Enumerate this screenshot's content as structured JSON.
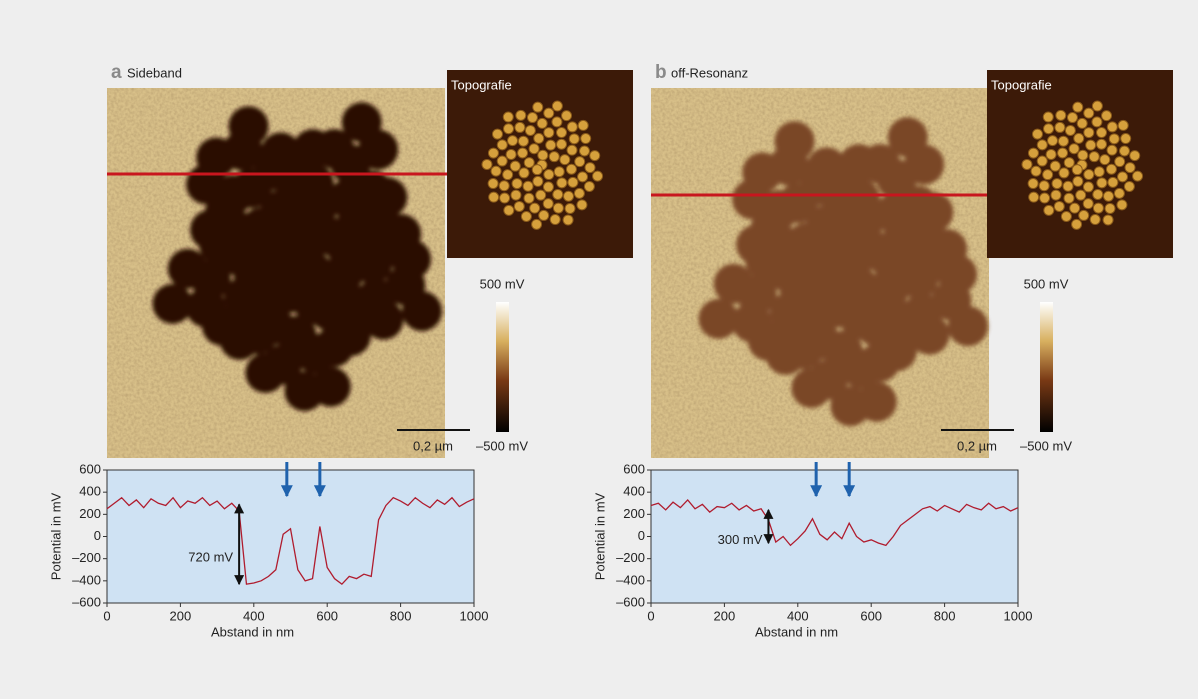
{
  "chart_data": [
    {
      "type": "line",
      "panel_letter": "a",
      "panel_title": "Sideband",
      "inset_label": "Topografie",
      "colorbar_labels": [
        "500 mV",
        "–500 mV"
      ],
      "scalebar_label": "0,2 µm",
      "xlabel": "Abstand in nm",
      "ylabel": "Potential in mV",
      "x": [
        0,
        20,
        40,
        60,
        80,
        100,
        120,
        140,
        160,
        180,
        200,
        220,
        240,
        260,
        280,
        300,
        320,
        340,
        360,
        380,
        400,
        420,
        440,
        460,
        480,
        500,
        520,
        540,
        560,
        580,
        600,
        620,
        640,
        660,
        680,
        700,
        720,
        740,
        760,
        780,
        800,
        820,
        840,
        860,
        880,
        900,
        920,
        940,
        960,
        980,
        1000
      ],
      "series": [
        {
          "color": "#b01c2e",
          "values": [
            250,
            300,
            350,
            280,
            330,
            260,
            340,
            300,
            280,
            350,
            260,
            320,
            300,
            350,
            280,
            320,
            250,
            300,
            230,
            -430,
            -420,
            -400,
            -360,
            -300,
            20,
            70,
            -300,
            -400,
            -380,
            90,
            -280,
            -380,
            -430,
            -360,
            -380,
            -340,
            -360,
            150,
            280,
            350,
            320,
            280,
            350,
            300,
            260,
            330,
            290,
            350,
            270,
            310,
            340
          ]
        }
      ],
      "xlim": [
        0,
        1000
      ],
      "xticks": [
        0,
        200,
        400,
        600,
        800,
        1000
      ],
      "ylim": [
        -600,
        600
      ],
      "yticks": [
        {
          "value": -600,
          "label": "–600"
        },
        {
          "value": -400,
          "label": "–400"
        },
        {
          "value": -200,
          "label": "–200"
        },
        0,
        200,
        400,
        600
      ],
      "annotations": [
        {
          "text": "720 mV",
          "x": 360,
          "y_from": -430,
          "y_to": 290
        }
      ],
      "arrows_x": [
        490,
        580
      ],
      "arrow_color": "#1f62ad"
    },
    {
      "type": "line",
      "panel_letter": "b",
      "panel_title": "off-Resonanz",
      "inset_label": "Topografie",
      "colorbar_labels": [
        "500 mV",
        "–500 mV"
      ],
      "scalebar_label": "0,2 µm",
      "xlabel": "Abstand in nm",
      "ylabel": "Potential in mV",
      "x": [
        0,
        20,
        40,
        60,
        80,
        100,
        120,
        140,
        160,
        180,
        200,
        220,
        240,
        260,
        280,
        300,
        320,
        340,
        360,
        380,
        400,
        420,
        440,
        460,
        480,
        500,
        520,
        540,
        560,
        580,
        600,
        620,
        640,
        660,
        680,
        700,
        720,
        740,
        760,
        780,
        800,
        820,
        840,
        860,
        880,
        900,
        920,
        940,
        960,
        980,
        1000
      ],
      "series": [
        {
          "color": "#b01c2e",
          "values": [
            280,
            300,
            240,
            310,
            260,
            330,
            250,
            290,
            220,
            270,
            260,
            300,
            240,
            280,
            230,
            250,
            150,
            -50,
            0,
            -80,
            -20,
            50,
            160,
            20,
            -30,
            40,
            -20,
            120,
            0,
            -50,
            -30,
            -60,
            -80,
            0,
            100,
            150,
            200,
            250,
            270,
            230,
            280,
            250,
            220,
            290,
            260,
            240,
            300,
            250,
            270,
            230,
            260
          ]
        }
      ],
      "xlim": [
        0,
        1000
      ],
      "xticks": [
        0,
        200,
        400,
        600,
        800,
        1000
      ],
      "ylim": [
        -600,
        600
      ],
      "yticks": [
        {
          "value": -600,
          "label": "–600"
        },
        {
          "value": -400,
          "label": "–400"
        },
        {
          "value": -200,
          "label": "–200"
        },
        0,
        200,
        400,
        600
      ],
      "annotations": [
        {
          "text": "300 mV",
          "x": 320,
          "y_from": -60,
          "y_to": 240
        }
      ],
      "arrows_x": [
        450,
        540
      ],
      "arrow_color": "#1f62ad"
    }
  ]
}
